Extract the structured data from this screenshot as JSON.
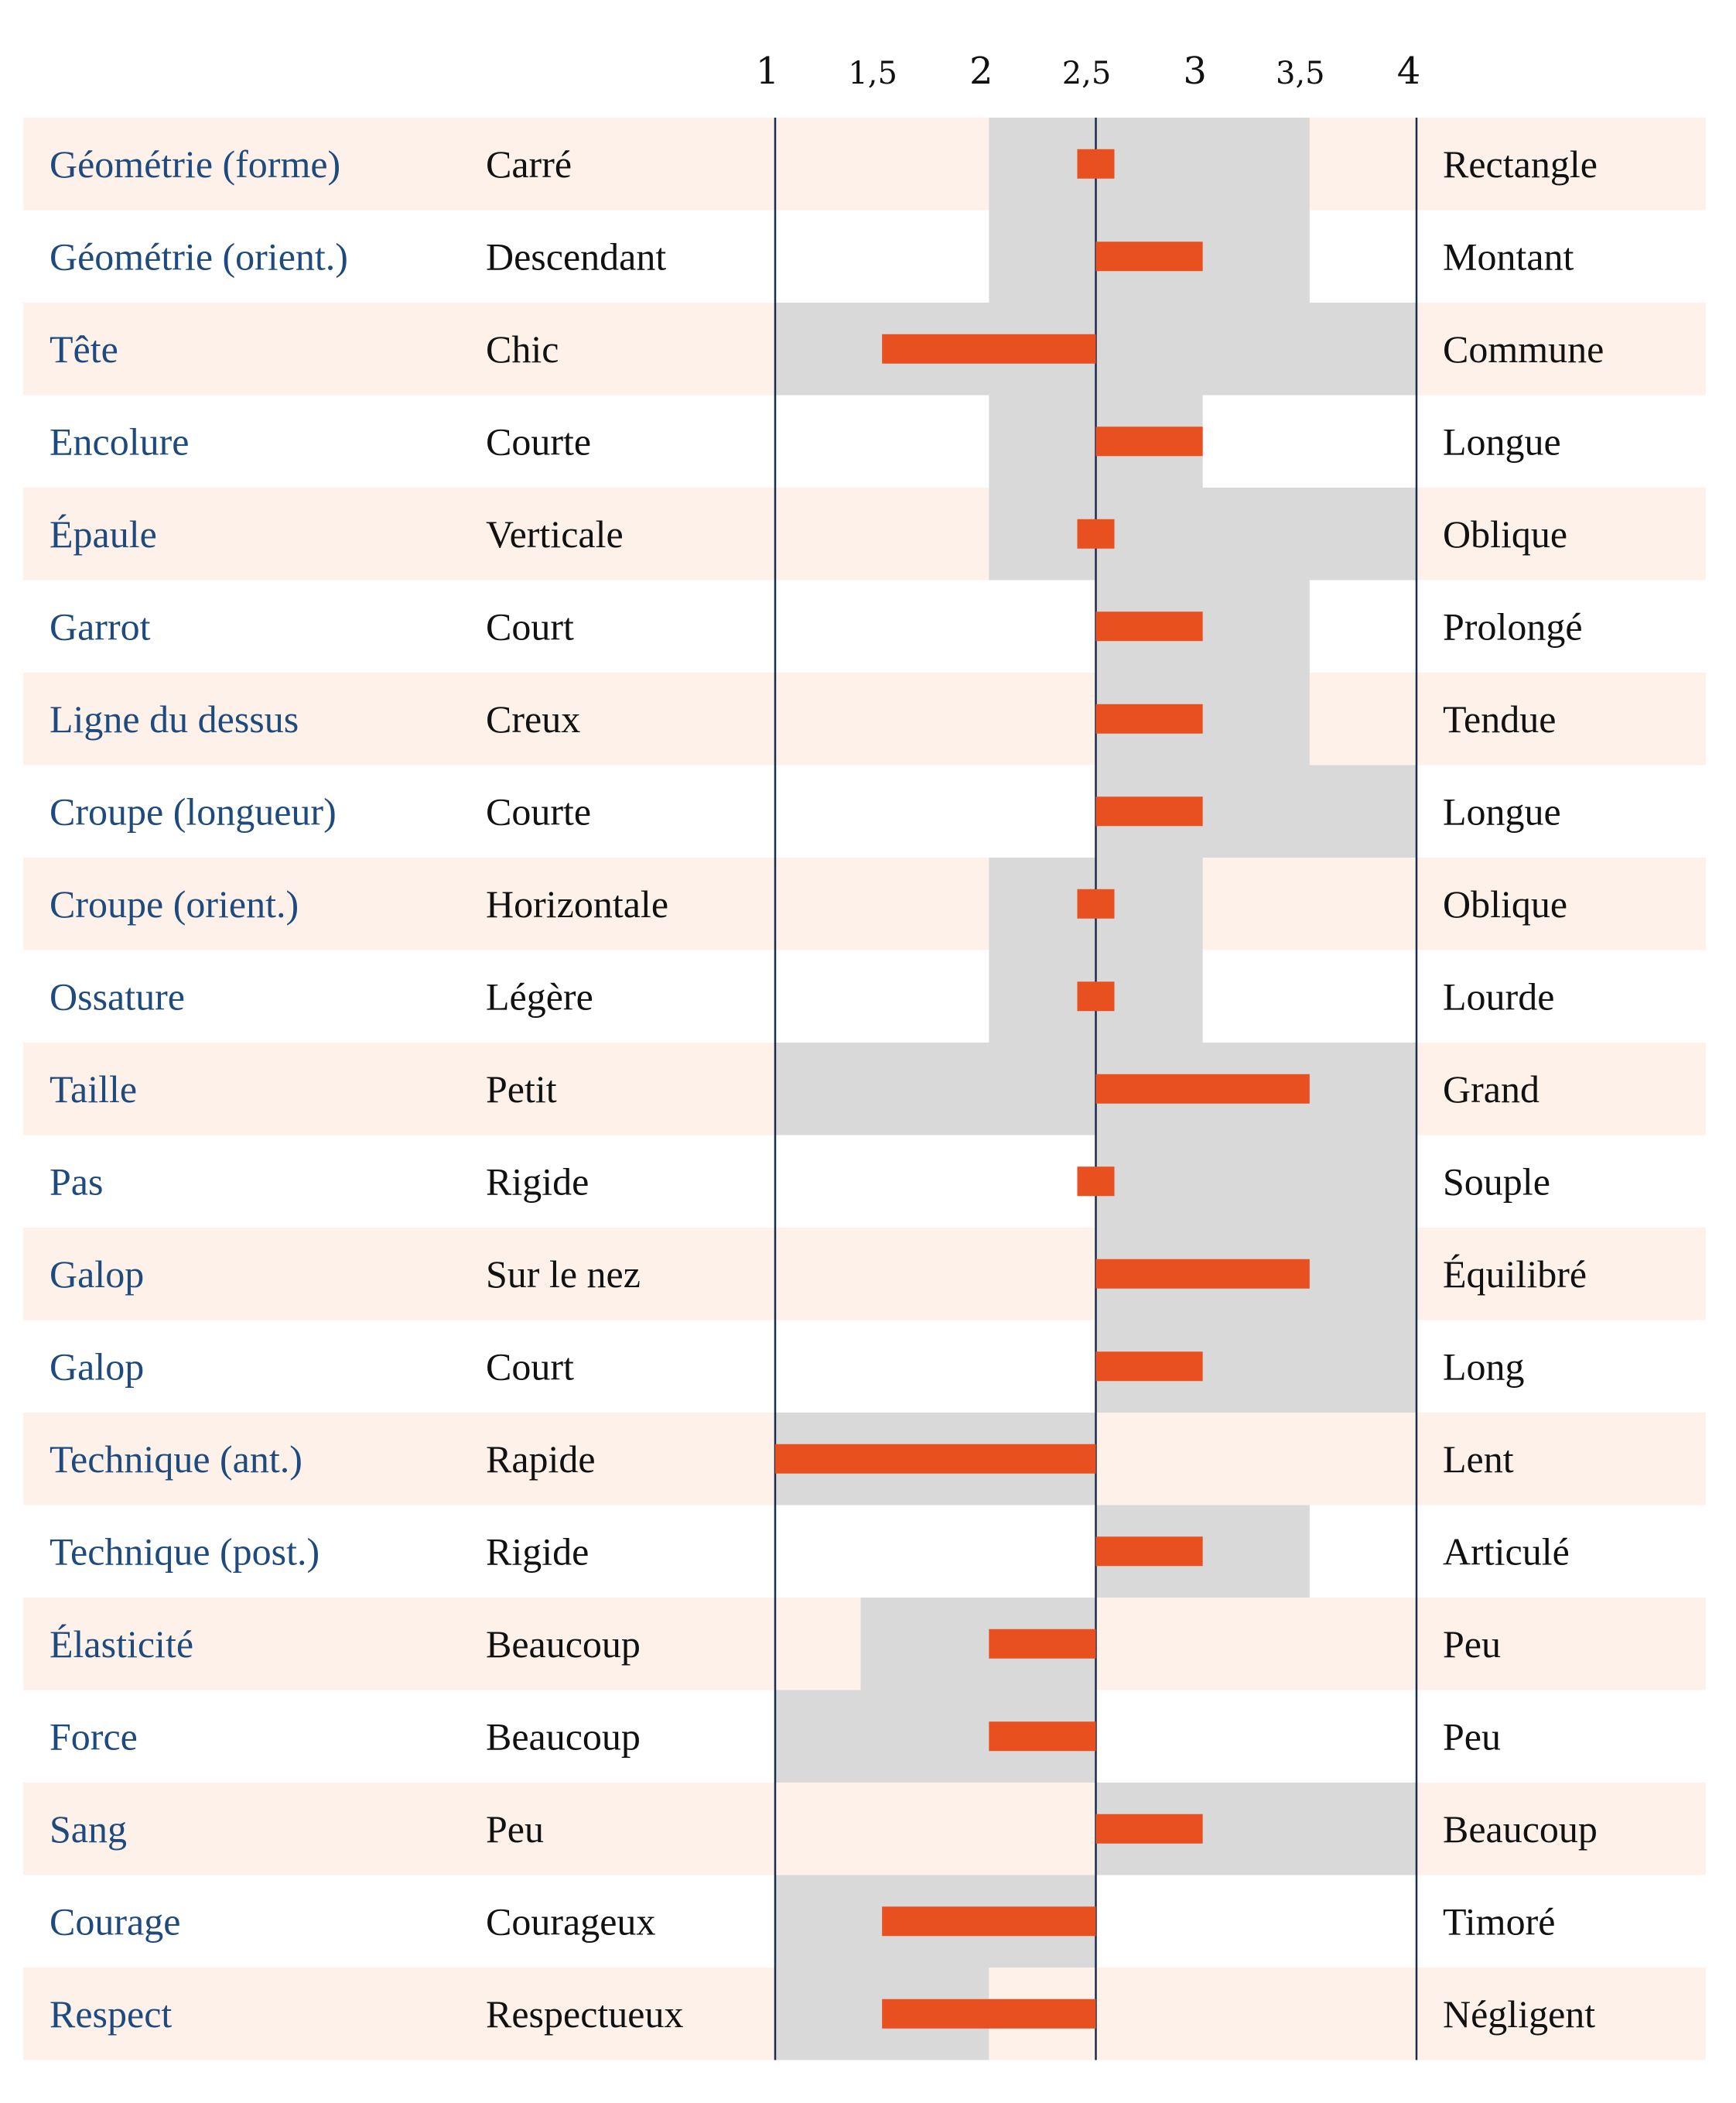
{
  "chart_data": {
    "type": "bar",
    "x_ticks": [
      "1",
      "1,5",
      "2",
      "2,5",
      "3",
      "3,5",
      "4"
    ],
    "x_range": [
      1,
      4
    ],
    "baseline": 2.5,
    "colors": {
      "bar": "#e85020",
      "range": "#d9d9d9",
      "band": "#fdf1ea",
      "category": "#1e4a7e",
      "text": "#111111",
      "axis": "#1c2b4a"
    },
    "rows": [
      {
        "category": "Géométrie (forme)",
        "left": "Carré",
        "right": "Rectangle",
        "value": 2.5,
        "range": [
          2,
          3.5
        ]
      },
      {
        "category": "Géométrie (orient.)",
        "left": "Descendant",
        "right": "Montant",
        "value": 3,
        "range": [
          2,
          3.5
        ]
      },
      {
        "category": "Tête",
        "left": "Chic",
        "right": "Commune",
        "value": 1.5,
        "range": [
          1,
          4
        ]
      },
      {
        "category": "Encolure",
        "left": "Courte",
        "right": "Longue",
        "value": 3,
        "range": [
          2,
          3
        ]
      },
      {
        "category": "Épaule",
        "left": "Verticale",
        "right": "Oblique",
        "value": 2.5,
        "range": [
          2,
          4
        ]
      },
      {
        "category": "Garrot",
        "left": "Court",
        "right": "Prolongé",
        "value": 3,
        "range": [
          2.5,
          3.5
        ]
      },
      {
        "category": "Ligne du dessus",
        "left": "Creux",
        "right": "Tendue",
        "value": 3,
        "range": [
          2.5,
          3.5
        ]
      },
      {
        "category": "Croupe (longueur)",
        "left": "Courte",
        "right": "Longue",
        "value": 3,
        "range": [
          2.5,
          4
        ]
      },
      {
        "category": "Croupe (orient.)",
        "left": "Horizontale",
        "right": "Oblique",
        "value": 2.5,
        "range": [
          2,
          3
        ]
      },
      {
        "category": "Ossature",
        "left": "Légère",
        "right": "Lourde",
        "value": 2.5,
        "range": [
          2,
          3
        ]
      },
      {
        "category": "Taille",
        "left": "Petit",
        "right": "Grand",
        "value": 3.5,
        "range": [
          1,
          4
        ]
      },
      {
        "category": "Pas",
        "left": "Rigide",
        "right": "Souple",
        "value": 2.5,
        "range": [
          2.5,
          4
        ]
      },
      {
        "category": "Galop",
        "left": "Sur le nez",
        "right": "Équilibré",
        "value": 3.5,
        "range": [
          2.5,
          4
        ]
      },
      {
        "category": "Galop",
        "left": "Court",
        "right": "Long",
        "value": 3,
        "range": [
          2.5,
          4
        ]
      },
      {
        "category": "Technique (ant.)",
        "left": "Rapide",
        "right": "Lent",
        "value": 1,
        "range": [
          1,
          2.5
        ]
      },
      {
        "category": "Technique (post.)",
        "left": "Rigide",
        "right": "Articulé",
        "value": 3,
        "range": [
          2.5,
          3.5
        ]
      },
      {
        "category": "Élasticité",
        "left": "Beaucoup",
        "right": "Peu",
        "value": 2,
        "range": [
          1.4,
          2.5
        ]
      },
      {
        "category": "Force",
        "left": "Beaucoup",
        "right": "Peu",
        "value": 2,
        "range": [
          1,
          2.5
        ]
      },
      {
        "category": "Sang",
        "left": "Peu",
        "right": "Beaucoup",
        "value": 3,
        "range": [
          2.5,
          4
        ]
      },
      {
        "category": "Courage",
        "left": "Courageux",
        "right": "Timoré",
        "value": 1.5,
        "range": [
          1,
          2.5
        ]
      },
      {
        "category": "Respect",
        "left": "Respectueux",
        "right": "Négligent",
        "value": 1.5,
        "range": [
          1,
          2
        ]
      }
    ]
  }
}
